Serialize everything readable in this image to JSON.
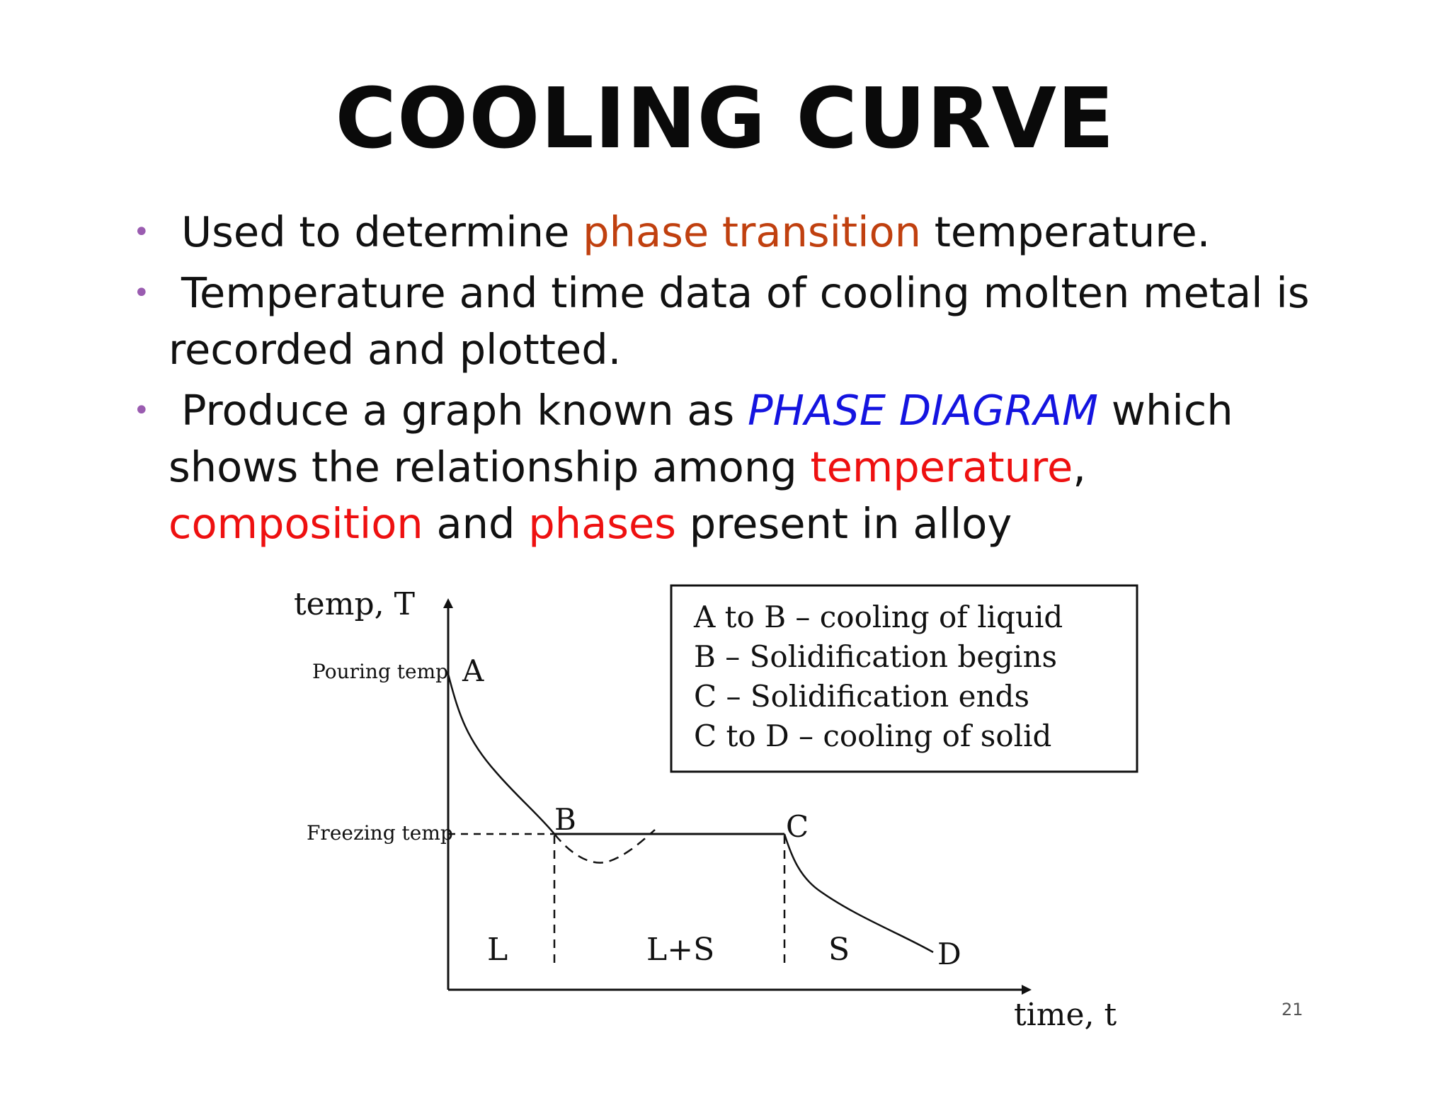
{
  "title": "COOLING CURVE",
  "bullets": [
    {
      "pre": "Used to determine ",
      "hl1": "phase transition",
      "post": " temperature."
    },
    {
      "line1": "Temperature and time data of cooling molten metal is",
      "line2": "recorded and plotted."
    },
    {
      "pre": "Produce a graph known as ",
      "hl_blue": "PHASE DIAGRAM",
      "mid": " which",
      "line2_pre": "shows the relationship among ",
      "hl_temp": "temperature",
      "comma": ",",
      "hl_comp": "composition",
      "and": " and ",
      "hl_phases": "phases",
      "end": " present in alloy"
    }
  ],
  "colors": {
    "bullet_dot": "#9a5cb0",
    "orange": "#c0400f",
    "blue": "#1414e0",
    "red": "#ee1010"
  },
  "diagram": {
    "y_axis_label": "temp, T",
    "x_axis_label": "time, t",
    "pouring_label": "Pouring temp",
    "freezing_label": "Freezing temp",
    "points": {
      "a": "A",
      "b": "B",
      "c": "C",
      "d": "D"
    },
    "regions": {
      "liquid": "L",
      "mixed": "L+S",
      "solid": "S"
    },
    "legend": [
      "A to B – cooling of liquid",
      "B – Solidification begins",
      "C – Solidification ends",
      "C to D – cooling of solid"
    ]
  },
  "page_number": "21"
}
